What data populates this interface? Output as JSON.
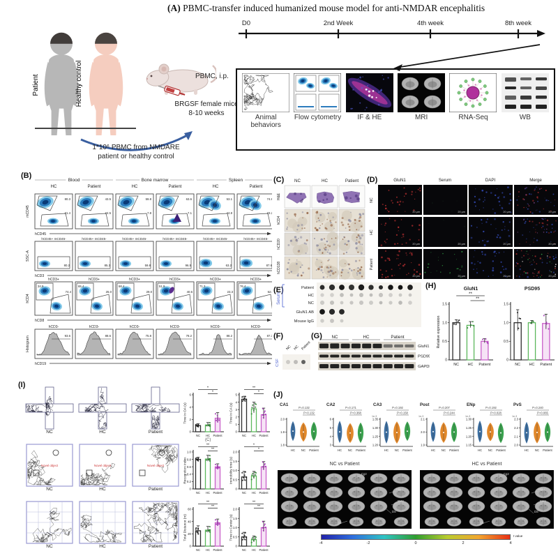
{
  "colors": {
    "nc": "#2b2b2b",
    "hc": "#5cb85c",
    "patient": "#c95fc9",
    "violin_hc": "#33689e",
    "violin_nc": "#e0821f",
    "violin_patient": "#2f9e44",
    "accent_blue": "#3a5fa0",
    "blot_blue": "#4a5fd0"
  },
  "panelA": {
    "label": "(A)",
    "title": "PBMC-transfer induced humanized mouse model for anti-NMDAR encephalitis",
    "patient_label": "Patient",
    "healthy_label": "Healthy control",
    "timeline": [
      "D0",
      "2nd Week",
      "4th week",
      "8th week"
    ],
    "pbmc_ip": "PBMC, i.p.",
    "mice_line1": "BRGSF female mice",
    "mice_line2": "8-10 weeks",
    "transfer_line1": "1*10⁶ PBMC from NMDARE",
    "transfer_line2": "patient or healthy control",
    "methods": [
      {
        "label": "Animal behaviors",
        "icon": "behavior-trace-thumbnail"
      },
      {
        "label": "Flow cytometry",
        "icon": "flow-cytometry-thumbnail"
      },
      {
        "label": "IF & HE",
        "icon": "if-he-thumbnail"
      },
      {
        "label": "MRI",
        "icon": "mri-thumbnail"
      },
      {
        "label": "RNA-Seq",
        "icon": "rna-seq-thumbnail"
      },
      {
        "label": "WB",
        "icon": "western-blot-thumbnail"
      }
    ]
  },
  "panelB": {
    "label": "(B)",
    "groups": [
      "Blood",
      "Bone marrow",
      "Spleen"
    ],
    "columns": [
      "HC",
      "Patient",
      "HC",
      "Patient",
      "HC",
      "Patient"
    ],
    "rows": [
      {
        "header": "",
        "ylabel": "mCD45",
        "xlabel": "hCD45",
        "pcts": [
          [
            "80.3",
            "21.4"
          ],
          [
            "43.5",
            "24.5"
          ],
          [
            "59.8",
            "7.8"
          ],
          [
            "63.6",
            "7.1"
          ],
          [
            "53.1",
            "44.8"
          ],
          [
            "74.8",
            "23.2"
          ]
        ]
      },
      {
        "header": "hCD45+ mCD45-",
        "ylabel": "SSC-A",
        "xlabel": "hCD3",
        "pcts": [
          "80.2",
          "85.3",
          "59.8",
          "96.5",
          "63.2",
          "87.6"
        ]
      },
      {
        "header": "hCD3+",
        "ylabel": "hCD4",
        "xlabel": "hCD8",
        "pcts": [
          [
            "34.9",
            "74.4"
          ],
          [
            "65.4",
            "25.0"
          ],
          [
            "68.4",
            "29.0"
          ],
          [
            "51.9",
            "40.6"
          ],
          [
            "71.3",
            "23.3"
          ],
          [
            "76.4",
            "52.0"
          ]
        ]
      },
      {
        "header": "hCD3-",
        "ylabel": "Histogram",
        "xlabel": "hCD19",
        "pcts": [
          "93.6",
          "88.6",
          "75.8",
          "78.2",
          "88.2",
          "87.3"
        ]
      }
    ]
  },
  "panelC": {
    "label": "(C)",
    "columns": [
      "NC",
      "HC",
      "Patient"
    ],
    "rows": [
      "H&E",
      "hCD4",
      "hCD20",
      "hCD138"
    ]
  },
  "panelD": {
    "label": "(D)",
    "columns": [
      "GluN1",
      "Serum",
      "DAPI",
      "Merge"
    ],
    "rows": [
      "NC",
      "HC",
      "Patient"
    ],
    "scale_bar": "20 μm"
  },
  "panelE": {
    "label": "(E)",
    "group_label": "Serum",
    "rows": [
      {
        "label": "Patient",
        "dots": 10,
        "intensity": "dark"
      },
      {
        "label": "HC",
        "dots": 10,
        "intensity": "faint"
      },
      {
        "label": "NC",
        "dots": 10,
        "intensity": "faint"
      },
      {
        "label": "GluN1 AB",
        "dots": 3,
        "intensity": "dark"
      },
      {
        "label": "Mouse IgG",
        "dots": 3,
        "intensity": "faint"
      }
    ]
  },
  "panelF": {
    "label": "(F)",
    "group_label": "CSF",
    "columns": [
      "NC",
      "HC",
      "Patient"
    ]
  },
  "panelG": {
    "label": "(G)",
    "columns": [
      "NC",
      "HC",
      "Patient"
    ],
    "bands": [
      "GluN1",
      "PSD95",
      "GAPDH"
    ]
  },
  "panelH": {
    "label": "(H)",
    "ylabel": "Relative expression",
    "charts": [
      {
        "title": "GluN1",
        "name": "glun1",
        "ylim": 1.5,
        "yticks": [
          "0",
          "0.5",
          "1.0",
          "1.5"
        ],
        "categories": [
          "NC",
          "HC",
          "Patient"
        ],
        "values": [
          1.0,
          0.93,
          0.5
        ],
        "errors": [
          0.08,
          0.1,
          0.07
        ],
        "sig": [
          [
            0,
            2,
            "**"
          ],
          [
            1,
            2,
            "**"
          ]
        ]
      },
      {
        "title": "PSD95",
        "name": "psd95",
        "ylim": 1.5,
        "yticks": [
          "0",
          "0.5",
          "1.0",
          "1.5"
        ],
        "categories": [
          "NC",
          "HC",
          "Patient"
        ],
        "values": [
          1.0,
          1.0,
          0.98
        ],
        "errors": [
          0.35,
          0.06,
          0.25
        ],
        "sig": []
      }
    ]
  },
  "panelI": {
    "label": "(I)",
    "stray_label": "(C)",
    "rows": [
      {
        "type": "plus-maze",
        "image_labels": [
          "NC",
          "HC",
          "Patient"
        ],
        "charts": [
          {
            "name": "time-in-oa",
            "ylabel": "Time in OA (s)",
            "ylim": 6,
            "yticks": [
              "0",
              "2",
              "4",
              "6"
            ],
            "categories": [
              "NC",
              "HC",
              "Patient"
            ],
            "values": [
              1.0,
              1.1,
              2.2
            ],
            "errors": [
              0.3,
              0.4,
              0.9
            ],
            "sig": [
              [
                0,
                2,
                "*"
              ],
              [
                1,
                2,
                "*"
              ]
            ]
          },
          {
            "name": "time-in-ca",
            "ylabel": "Time in CA (s)",
            "ylim": 5,
            "yticks": [
              "0",
              "1",
              "2",
              "3",
              "4",
              "5"
            ],
            "categories": [
              "NC",
              "HC",
              "Patient"
            ],
            "values": [
              4.4,
              3.1,
              2.3
            ],
            "errors": [
              0.4,
              0.9,
              0.9
            ],
            "sig": [
              [
                0,
                2,
                "**"
              ],
              [
                1,
                2,
                "*"
              ]
            ]
          }
        ]
      },
      {
        "type": "object-field",
        "image_labels": [
          "NC",
          "HC",
          "Patient"
        ],
        "center_text": "Novel object",
        "charts": [
          {
            "name": "recognition-index",
            "ylabel": "Recognition index",
            "ylim": 1.0,
            "yticks": [
              "0",
              "0.2",
              "0.4",
              "0.6",
              "0.8",
              "1.0"
            ],
            "categories": [
              "NC",
              "HC",
              "Patient"
            ],
            "values": [
              0.8,
              0.81,
              0.6
            ],
            "errors": [
              0.06,
              0.1,
              0.08
            ],
            "sig": [
              [
                0,
                2,
                "**"
              ],
              [
                1,
                2,
                "**"
              ]
            ]
          },
          {
            "name": "immobility-time",
            "ylabel": "Immobility time (s)",
            "ylim": 2.0,
            "yticks": [
              "0",
              "0.5",
              "1.0",
              "1.5",
              "2.0"
            ],
            "categories": [
              "NC",
              "HC",
              "Patient"
            ],
            "values": [
              0.65,
              0.7,
              1.2
            ],
            "errors": [
              0.3,
              0.25,
              0.28
            ],
            "sig": [
              [
                0,
                2,
                "*"
              ],
              [
                1,
                2,
                "*"
              ]
            ]
          }
        ]
      },
      {
        "type": "open-field",
        "image_labels": [
          "NC",
          "HC",
          "Patient"
        ],
        "charts": [
          {
            "name": "total-distance",
            "ylabel": "Total Distance (m)",
            "ylim": 60,
            "yticks": [
              "0",
              "20",
              "40",
              "60"
            ],
            "categories": [
              "NC",
              "HC",
              "Patient"
            ],
            "values": [
              25,
              26,
              38
            ],
            "errors": [
              8,
              6,
              6
            ],
            "sig": [
              [
                0,
                2,
                "**"
              ],
              [
                1,
                2,
                "**"
              ]
            ]
          },
          {
            "name": "time-in-center",
            "ylabel": "Time in Center (s)",
            "ylim": 2.0,
            "yticks": [
              "0",
              "0.5",
              "1.0",
              "1.5",
              "2.0"
            ],
            "categories": [
              "NC",
              "HC",
              "Patient"
            ],
            "values": [
              0.5,
              0.35,
              1.0
            ],
            "errors": [
              0.25,
              0.2,
              0.35
            ],
            "sig": [
              [
                0,
                2,
                "**"
              ],
              [
                1,
                2,
                "**"
              ]
            ]
          }
        ]
      }
    ]
  },
  "panelJ": {
    "label": "(J)",
    "violin_categories": [
      "HC",
      "NC",
      "Patient"
    ],
    "violins": [
      {
        "title": "CA1",
        "pvals": [
          "P=0.132",
          "P=0.132"
        ],
        "yticks": [
          "2.0",
          "1.9",
          "1.8"
        ]
      },
      {
        "title": "CA2",
        "pvals": [
          "P=0.171",
          "P=0.368"
        ],
        "yticks": [
          "6",
          "5",
          "4",
          "3"
        ]
      },
      {
        "title": "CA3",
        "pvals": [
          "P=0.192",
          "P=0.158"
        ],
        "yticks": [
          "1.35",
          "1.30",
          "1.25",
          "1.20"
        ],
        "exp": "1e-3"
      },
      {
        "title": "Post",
        "pvals": [
          "P=0.207",
          "P=0.244"
        ],
        "yticks": [
          "2.1",
          "2.0",
          "1.9"
        ],
        "exp": "1e-3"
      },
      {
        "title": "ENp",
        "pvals": [
          "P=0.192",
          "P=0.028"
        ],
        "yticks": [
          "1.30",
          "1.25",
          "1.20",
          "1.15"
        ],
        "exp": "1e-3"
      },
      {
        "title": "PvS",
        "pvals": [
          "P=0.240",
          "P=0.065"
        ],
        "yticks": [
          "2.3",
          "2.2",
          "2.1",
          "2.0"
        ],
        "exp": "1e-3"
      }
    ],
    "mri_titles": [
      "NC vs Patient",
      "HC vs Patient"
    ],
    "mri_annotations": [
      "Cg2",
      "Hipp",
      "BMS",
      "DS",
      "CE"
    ],
    "colorbar": {
      "ticks": [
        "-4",
        "-2",
        "0",
        "2",
        "4"
      ],
      "label": "t value",
      "gradient": [
        "#2222aa",
        "#2f6fde",
        "#2fc4c4",
        "#2f9e2f",
        "#bacc2f",
        "#f2a72f",
        "#e83015"
      ]
    }
  }
}
